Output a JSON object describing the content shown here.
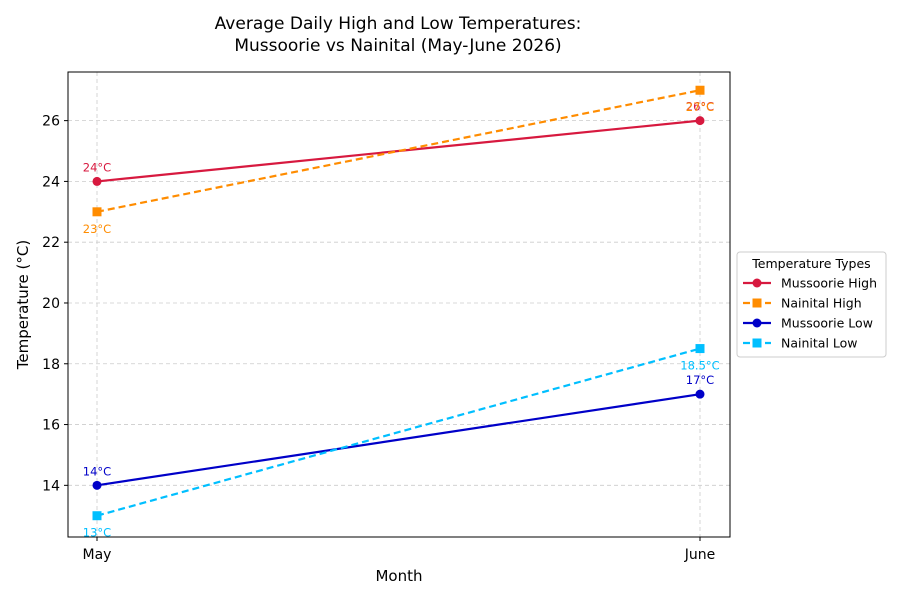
{
  "chart_data": {
    "type": "line",
    "title": [
      "Average Daily High and Low Temperatures:",
      "Mussoorie vs Nainital (May-June 2026)"
    ],
    "xlabel": "Month",
    "ylabel": "Temperature (°C)",
    "categories": [
      "May",
      "June"
    ],
    "ylim": [
      12.3,
      27.6
    ],
    "yticks": [
      14,
      16,
      18,
      20,
      22,
      24,
      26
    ],
    "grid": true,
    "legend_title": "Temperature Types",
    "legend_position": "right",
    "series": [
      {
        "name": "Mussoorie High",
        "values": [
          24,
          26
        ],
        "color": "#d7193f",
        "dash": false,
        "marker": "circle",
        "labels": [
          "24°C",
          "26°C"
        ],
        "label_pos": [
          "above",
          "above"
        ]
      },
      {
        "name": "Nainital High",
        "values": [
          23,
          27
        ],
        "color": "#ff8c00",
        "dash": true,
        "marker": "square",
        "labels": [
          "23°C",
          "27°C"
        ],
        "label_pos": [
          "below",
          "below"
        ]
      },
      {
        "name": "Mussoorie Low",
        "values": [
          14,
          17
        ],
        "color": "#0000c8",
        "dash": false,
        "marker": "circle",
        "labels": [
          "14°C",
          "17°C"
        ],
        "label_pos": [
          "above",
          "above"
        ]
      },
      {
        "name": "Nainital Low",
        "values": [
          13,
          18.5
        ],
        "color": "#00bfff",
        "dash": true,
        "marker": "square",
        "labels": [
          "13°C",
          "18.5°C"
        ],
        "label_pos": [
          "below",
          "below"
        ]
      }
    ]
  }
}
